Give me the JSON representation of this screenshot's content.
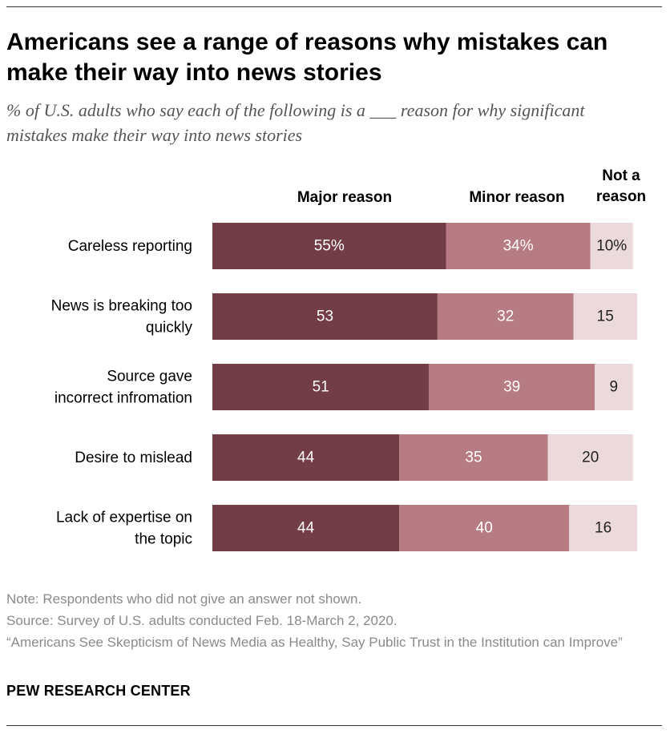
{
  "header": {
    "title": "Americans see a range of reasons why mistakes can make their way into news stories",
    "subtitle": "% of U.S. adults who say each of the following is a ___ reason for why significant mistakes make their way into news stories"
  },
  "colors": {
    "major": "#733d47",
    "minor": "#b77b83",
    "not": "#ecd9dc",
    "label_dark_bg": "#ffffff",
    "label_light_bg": "#222222"
  },
  "chart_data": {
    "type": "bar",
    "orientation": "horizontal",
    "stacked": true,
    "title": "Americans see a range of reasons why mistakes can make their way into news stories",
    "column_headers": [
      "Major reason",
      "Minor reason",
      "Not a reason"
    ],
    "categories": [
      "Careless reporting",
      "News is breaking too quickly",
      "Source gave incorrect infromation",
      "Desire to mislead",
      "Lack of expertise on the topic"
    ],
    "category_lines": [
      [
        "Careless reporting"
      ],
      [
        "News is breaking too",
        "quickly"
      ],
      [
        "Source gave",
        "incorrect infromation"
      ],
      [
        "Desire to mislead"
      ],
      [
        "Lack of expertise on",
        "the topic"
      ]
    ],
    "series": [
      {
        "name": "Major reason",
        "values": [
          55,
          53,
          51,
          44,
          44
        ],
        "labels": [
          "55%",
          "53",
          "51",
          "44",
          "44"
        ]
      },
      {
        "name": "Minor reason",
        "values": [
          34,
          32,
          39,
          35,
          40
        ],
        "labels": [
          "34%",
          "32",
          "39",
          "35",
          "40"
        ]
      },
      {
        "name": "Not a reason",
        "values": [
          10,
          15,
          9,
          20,
          16
        ],
        "labels": [
          "10%",
          "15",
          "9",
          "20",
          "16"
        ]
      }
    ],
    "xlim": [
      0,
      100
    ]
  },
  "footer": {
    "note": "Note: Respondents who did not give an answer not shown.",
    "source": "Source: Survey of U.S. adults conducted Feb. 18-March 2, 2020.",
    "report": "“Americans See Skepticism of News Media as Healthy, Say Public Trust in the Institution can Improve”",
    "brand": "PEW RESEARCH CENTER"
  }
}
